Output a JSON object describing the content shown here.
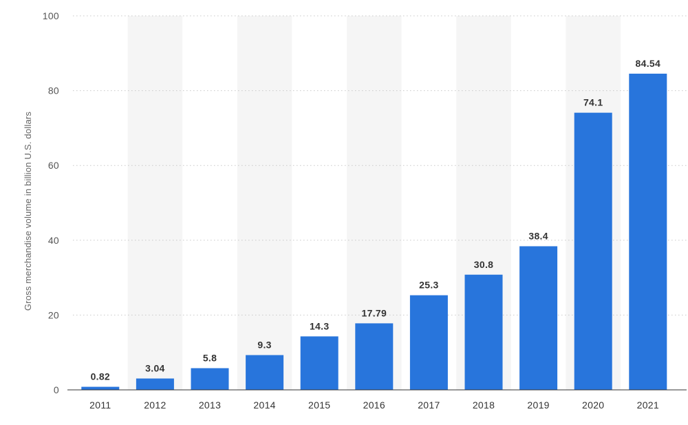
{
  "chart_data": {
    "type": "bar",
    "categories": [
      "2011",
      "2012",
      "2013",
      "2014",
      "2015",
      "2016",
      "2017",
      "2018",
      "2019",
      "2020",
      "2021"
    ],
    "values": [
      0.82,
      3.04,
      5.8,
      9.3,
      14.3,
      17.79,
      25.3,
      30.8,
      38.4,
      74.1,
      84.54
    ],
    "data_labels": [
      "0.82",
      "3.04",
      "5.8",
      "9.3",
      "14.3",
      "17.79",
      "25.3",
      "30.8",
      "38.4",
      "74.1",
      "84.54"
    ],
    "title": "",
    "xlabel": "",
    "ylabel": "Gross merchandise volume in billion U.S. dollars",
    "ylim": [
      0,
      100
    ],
    "yticks": [
      "0",
      "20",
      "40",
      "60",
      "80",
      "100"
    ],
    "grid": "horizontal dotted",
    "legend": "none",
    "colors": {
      "bar": "#2875dc",
      "band": "#f5f5f5",
      "grid": "#c8c8c8",
      "baseline": "#333333"
    }
  }
}
